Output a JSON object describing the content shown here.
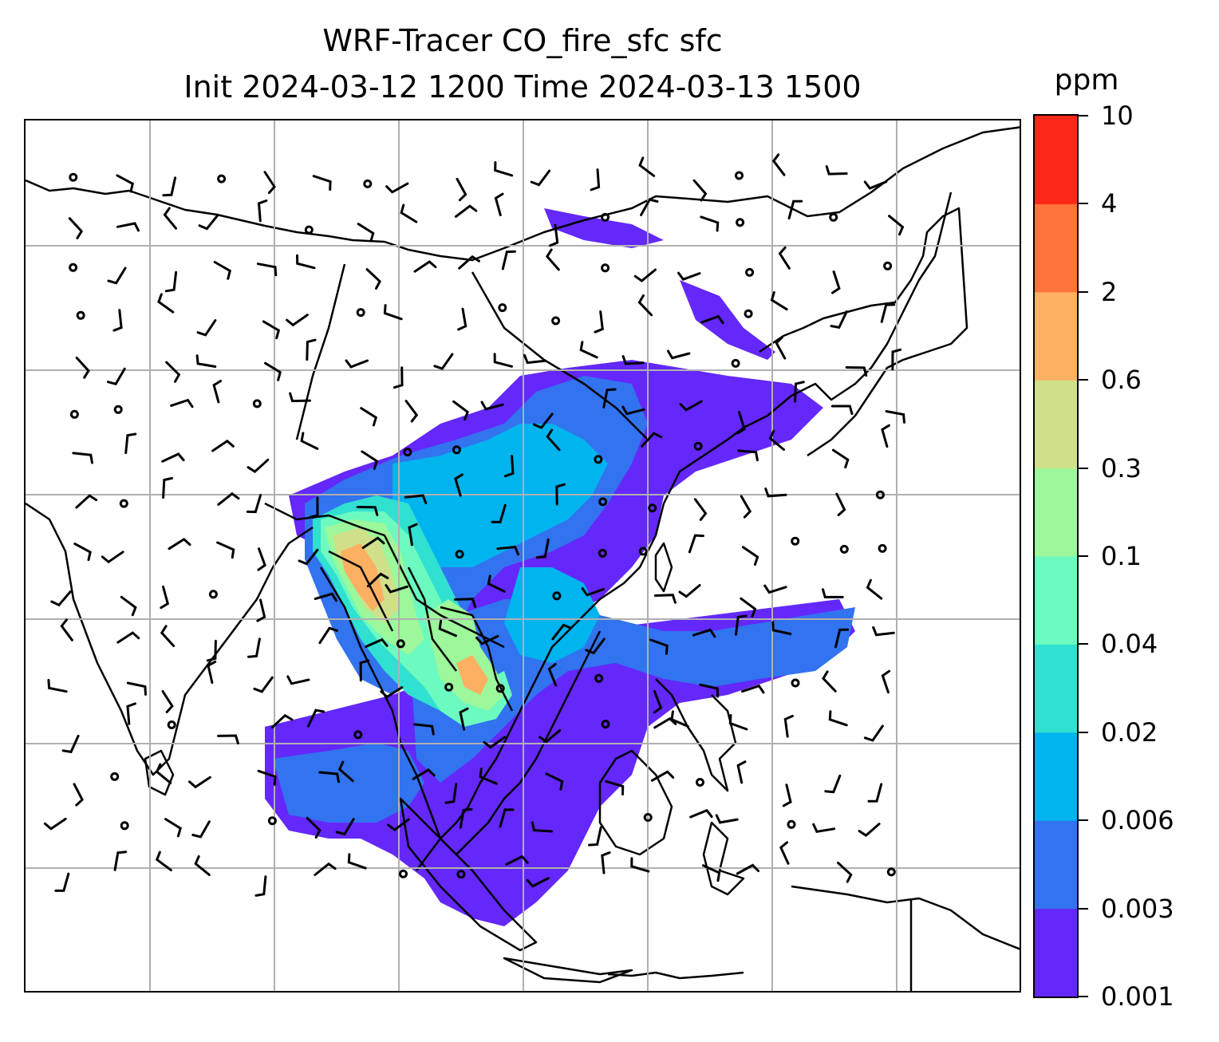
{
  "title": {
    "line1": "WRF-Tracer CO_fire_sfc sfc",
    "line2": "Init 2024-03-12 1200 Time 2024-03-13 1500"
  },
  "colorbar": {
    "unit": "ppm",
    "levels": [
      "0.001",
      "0.003",
      "0.006",
      "0.02",
      "0.04",
      "0.1",
      "0.3",
      "0.6",
      "2",
      "4",
      "10"
    ],
    "colors": [
      "#6428fa",
      "#3273f0",
      "#00b4ee",
      "#30e0d0",
      "#6cfac0",
      "#9cf89a",
      "#d0e08a",
      "#fdb062",
      "#fd733c",
      "#fc2818"
    ]
  },
  "chart_data": {
    "type": "heatmap",
    "variable": "CO_fire_sfc",
    "unit": "ppm",
    "contour_levels": [
      0.001,
      0.003,
      0.006,
      0.02,
      0.04,
      0.1,
      0.3,
      0.6,
      2,
      4,
      10
    ],
    "gridlines": true,
    "overlays": [
      "coastlines",
      "country borders",
      "wind barbs"
    ],
    "colorbar_position": "right"
  }
}
